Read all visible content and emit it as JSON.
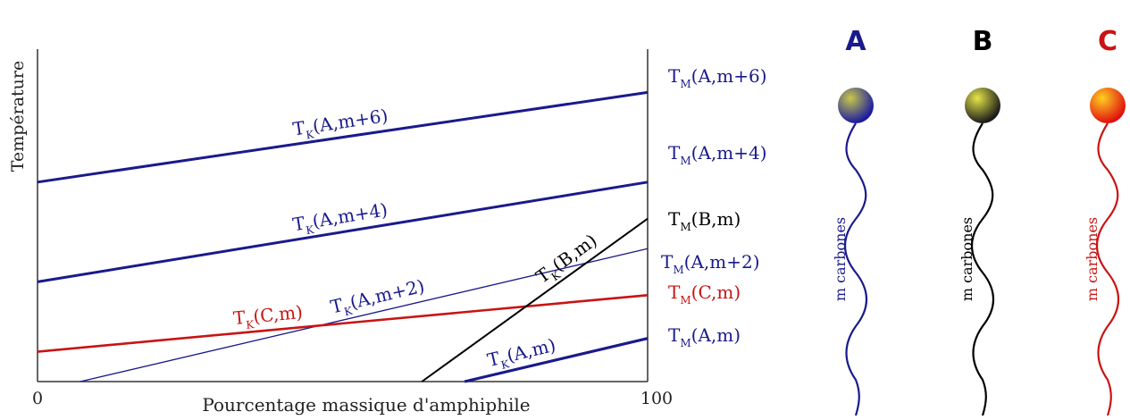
{
  "colors": {
    "blue": "#1a1a8c",
    "black": "#000000",
    "red": "#c81414",
    "axis": "#333333",
    "label_blue": "#1a1a8c",
    "label_red": "#c81414"
  },
  "chart_data": {
    "type": "line",
    "title": "",
    "xlabel": "Pourcentage massique d'amphiphile",
    "ylabel": "Température",
    "xlim": [
      0,
      100
    ],
    "x_ticks": [
      "0",
      "100"
    ],
    "y_ticks": [],
    "series": [
      {
        "name": "T_K(A,m+6)",
        "label_main": "T",
        "label_sub": "K",
        "label_rest": "(A,m+6)",
        "end_main": "T",
        "end_sub": "M",
        "end_rest": "(A,m+6)",
        "color_key": "blue",
        "x": [
          0,
          100
        ],
        "y": [
          0.6,
          0.87
        ]
      },
      {
        "name": "T_K(A,m+4)",
        "label_main": "T",
        "label_sub": "K",
        "label_rest": "(A,m+4)",
        "end_main": "T",
        "end_sub": "M",
        "end_rest": "(A,m+4)",
        "color_key": "blue",
        "x": [
          0,
          100
        ],
        "y": [
          0.3,
          0.6
        ]
      },
      {
        "name": "T_K(A,m+2)",
        "label_main": "T",
        "label_sub": "K",
        "label_rest": "(A,m+2)",
        "end_main": "T",
        "end_sub": "M",
        "end_rest": "(A,m+2)",
        "color_key": "blue",
        "x": [
          7,
          100
        ],
        "y": [
          0.0,
          0.4
        ]
      },
      {
        "name": "T_K(C,m)",
        "label_main": "T",
        "label_sub": "K",
        "label_rest": "(C,m)",
        "end_main": "T",
        "end_sub": "M",
        "end_rest": "(C,m)",
        "color_key": "red",
        "x": [
          0,
          100
        ],
        "y": [
          0.09,
          0.26
        ]
      },
      {
        "name": "T_K(B,m)",
        "label_main": "T",
        "label_sub": "K",
        "label_rest": "(B,m)",
        "end_main": "T",
        "end_sub": "M",
        "end_rest": "(B,m)",
        "color_key": "black",
        "x": [
          63,
          100
        ],
        "y": [
          0.0,
          0.49
        ]
      },
      {
        "name": "T_K(A,m)",
        "label_main": "T",
        "label_sub": "K",
        "label_rest": "(A,m)",
        "end_main": "T",
        "end_sub": "M",
        "end_rest": "(A,m)",
        "color_key": "blue",
        "x": [
          70,
          100
        ],
        "y": [
          0.0,
          0.13
        ]
      }
    ],
    "grid": false,
    "legend": "none"
  },
  "molecules": [
    {
      "letter": "A",
      "label": "m carbones",
      "color_key": "blue",
      "head_light": "#c8c84a",
      "head_dark": "#1a1aa0"
    },
    {
      "letter": "B",
      "label": "m carbones",
      "color_key": "black",
      "head_light": "#e6e64a",
      "head_dark": "#1a1a1a"
    },
    {
      "letter": "C",
      "label": "m carbones",
      "color_key": "red",
      "head_light": "#ffd020",
      "head_dark": "#e01010"
    }
  ]
}
